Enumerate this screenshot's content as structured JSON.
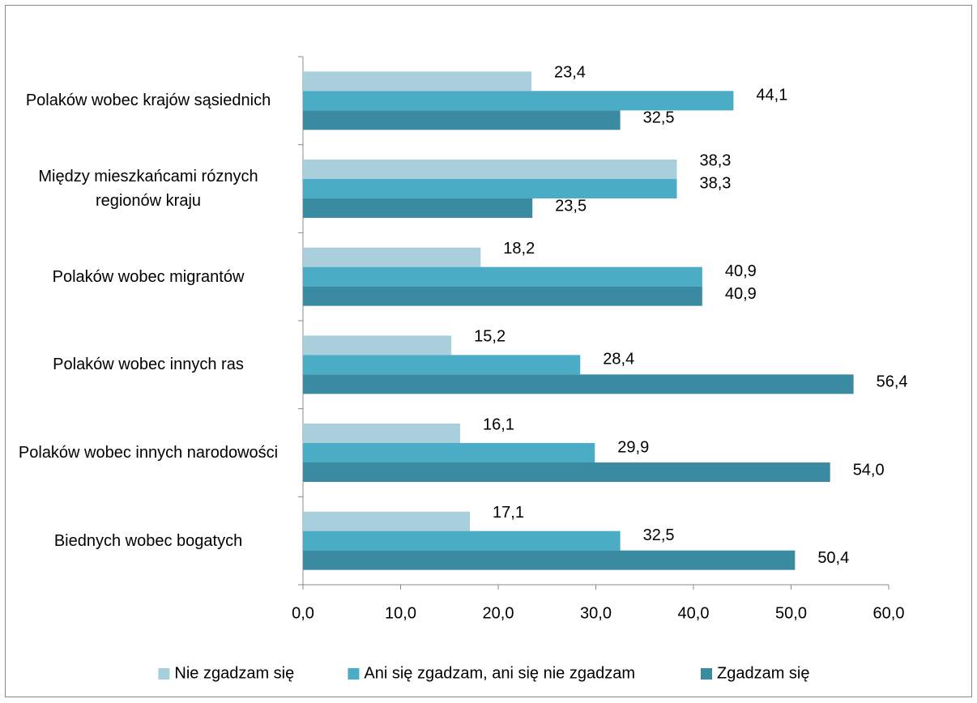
{
  "chart_data": {
    "type": "bar",
    "orientation": "horizontal",
    "categories": [
      "Polaków wobec krajów sąsiednich",
      "Między mieszkańcami róznych regionów kraju",
      "Polaków wobec migrantów",
      "Polaków wobec innych ras",
      "Polaków wobec innych narodowości",
      "Biednych wobec bogatych"
    ],
    "series": [
      {
        "name": "Nie zgadzam się",
        "color": "#a9cfdc",
        "values": [
          23.4,
          38.3,
          18.2,
          15.2,
          16.1,
          17.1
        ],
        "value_labels": [
          "23,4",
          "38,3",
          "18,2",
          "15,2",
          "16,1",
          "17,1"
        ]
      },
      {
        "name": "Ani się zgadzam, ani się nie zgadzam",
        "color": "#4bacc6",
        "values": [
          44.1,
          38.3,
          40.9,
          28.4,
          29.9,
          32.5
        ],
        "value_labels": [
          "44,1",
          "38,3",
          "40,9",
          "28,4",
          "29,9",
          "32,5"
        ]
      },
      {
        "name": "Zgadzam się",
        "color": "#3a8ba2",
        "values": [
          32.5,
          23.5,
          40.9,
          56.4,
          54.0,
          50.4
        ],
        "value_labels": [
          "32,5",
          "23,5",
          "40,9",
          "56,4",
          "54,0",
          "50,4"
        ]
      }
    ],
    "xlim": [
      0,
      60
    ],
    "xticks": [
      {
        "value": 0,
        "label": "0,0"
      },
      {
        "value": 10,
        "label": "10,0"
      },
      {
        "value": 20,
        "label": "20,0"
      },
      {
        "value": 30,
        "label": "30,0"
      },
      {
        "value": 40,
        "label": "40,0"
      },
      {
        "value": 50,
        "label": "50,0"
      },
      {
        "value": 60,
        "label": "60,0"
      }
    ],
    "legend": "bottom"
  }
}
